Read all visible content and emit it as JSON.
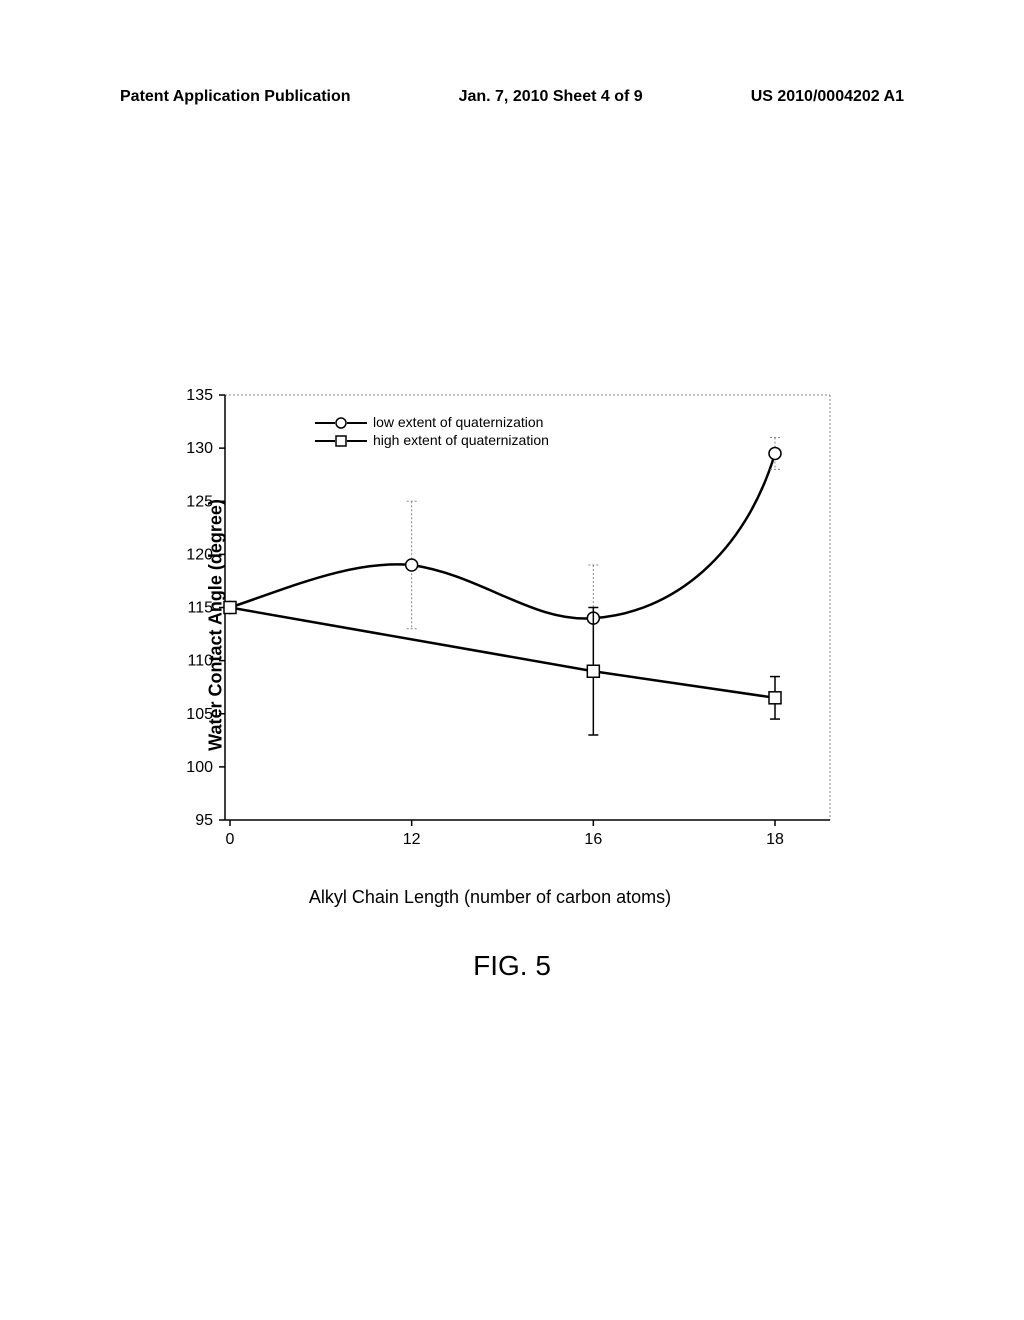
{
  "header": {
    "left": "Patent Application Publication",
    "center": "Jan. 7, 2010  Sheet 4 of 9",
    "right": "US 2010/0004202 A1"
  },
  "chart": {
    "type": "line",
    "y_axis_label": "Water Contact Angle (degree)",
    "x_axis_label": "Alkyl Chain Length (number of carbon atoms)",
    "ylim": [
      95,
      135
    ],
    "ytick_step": 5,
    "yticks": [
      95,
      100,
      105,
      110,
      115,
      120,
      125,
      130,
      135
    ],
    "x_categories": [
      "0",
      "12",
      "16",
      "18"
    ],
    "x_positions": [
      0,
      1,
      2,
      3
    ],
    "colors": {
      "axis": "#000000",
      "line": "#000000",
      "marker_fill": "#ffffff",
      "error_dotted": "#888888",
      "background": "#ffffff"
    },
    "line_width": 2.5,
    "marker_size": 6,
    "series": [
      {
        "name": "low extent of quaternization",
        "marker": "circle",
        "x": [
          0,
          1,
          2,
          3
        ],
        "y": [
          115,
          119,
          114,
          129.5
        ],
        "y_err": [
          0,
          6,
          5,
          1.5
        ],
        "error_style": "dotted"
      },
      {
        "name": "high extent of quaternization",
        "marker": "square",
        "x": [
          0,
          1,
          2,
          3
        ],
        "y": [
          115,
          null,
          109,
          106.5
        ],
        "y_err": [
          0,
          null,
          6,
          2
        ],
        "error_style": "solid"
      }
    ],
    "legend": {
      "position": "top-left-inside",
      "items": [
        {
          "label": "low extent of quaternization",
          "marker": "circle"
        },
        {
          "label": "high extent of quaternization",
          "marker": "square"
        }
      ]
    }
  },
  "figure_caption": "FIG. 5"
}
